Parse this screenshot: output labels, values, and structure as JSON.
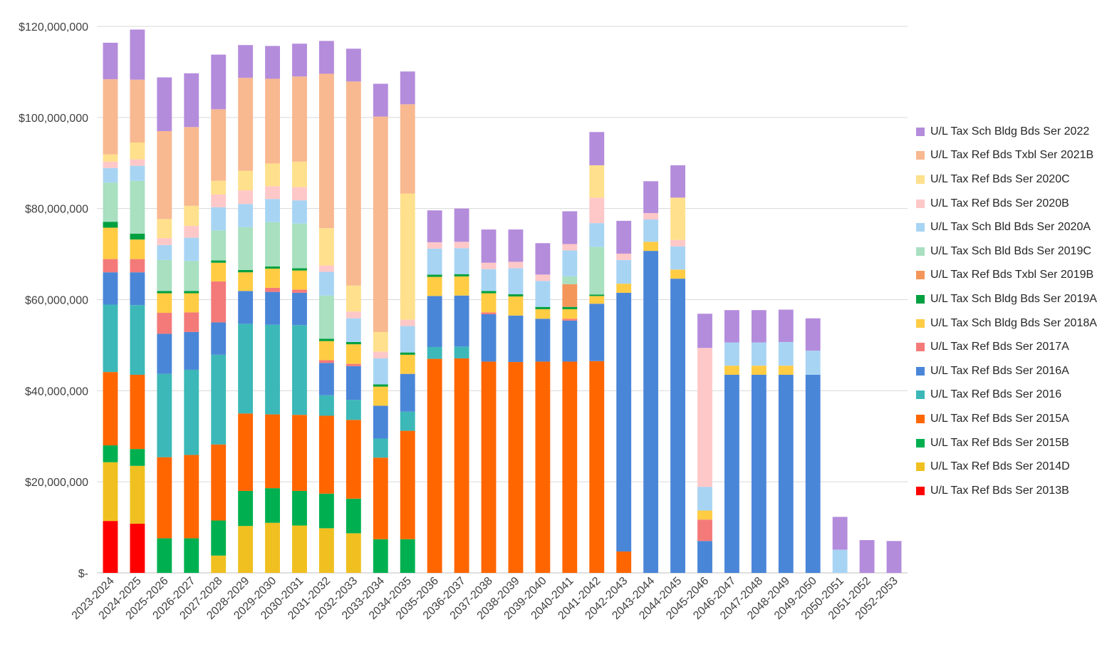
{
  "chart_data": {
    "type": "bar",
    "stacked": true,
    "ylim": [
      0,
      120000000
    ],
    "ytick_labels": [
      "$-",
      "$20,000,000",
      "$40,000,000",
      "$60,000,000",
      "$80,000,000",
      "$100,000,000",
      "$120,000,000"
    ],
    "grid": true,
    "legend_position": "right",
    "categories": [
      "2023-2024",
      "2024-2025",
      "2025-2026",
      "2026-2027",
      "2027-2028",
      "2028-2029",
      "2029-2030",
      "2030-2031",
      "2031-2032",
      "2032-2033",
      "2033-2034",
      "2034-2035",
      "2035-2036",
      "2036-2037",
      "2037-2038",
      "2038-2039",
      "2039-2040",
      "2040-2041",
      "2041-2042",
      "2042-2043",
      "2043-2044",
      "2044-2045",
      "2045-2046",
      "2046-2047",
      "2047-2048",
      "2048-2049",
      "2049-2050",
      "2050-2051",
      "2051-2052",
      "2052-2053"
    ],
    "series": [
      {
        "name": "U/L Tax Ref Bds Ser 2013B",
        "color": "#ff0000",
        "values": [
          11400000,
          10800000,
          0,
          0,
          0,
          0,
          0,
          0,
          0,
          0,
          0,
          0,
          0,
          0,
          0,
          0,
          0,
          0,
          0,
          0,
          0,
          0,
          0,
          0,
          0,
          0,
          0,
          0,
          0,
          0
        ]
      },
      {
        "name": "U/L Tax Ref Bds Ser 2014D",
        "color": "#f0c020",
        "values": [
          12900000,
          12700000,
          0,
          0,
          3800000,
          10300000,
          11000000,
          10400000,
          9800000,
          8700000,
          0,
          0,
          0,
          0,
          0,
          0,
          0,
          0,
          0,
          0,
          0,
          0,
          0,
          0,
          0,
          0,
          0,
          0,
          0,
          0
        ]
      },
      {
        "name": "U/L Tax Ref Bds Ser 2015B",
        "color": "#00b050",
        "values": [
          3700000,
          3700000,
          7600000,
          7600000,
          7700000,
          7700000,
          7600000,
          7600000,
          7600000,
          7600000,
          7400000,
          7400000,
          0,
          0,
          0,
          0,
          0,
          0,
          0,
          0,
          0,
          0,
          0,
          0,
          0,
          0,
          0,
          0,
          0,
          0
        ]
      },
      {
        "name": "U/L Tax Ref Bds Ser 2015A",
        "color": "#ff6600",
        "values": [
          16100000,
          16300000,
          17800000,
          18300000,
          16700000,
          17000000,
          16200000,
          16700000,
          17100000,
          17300000,
          17900000,
          23800000,
          47000000,
          47100000,
          46400000,
          46300000,
          46400000,
          46400000,
          46500000,
          4700000,
          0,
          0,
          0,
          0,
          0,
          0,
          0,
          0,
          0,
          0
        ]
      },
      {
        "name": "U/L Tax Ref Bds Ser 2016",
        "color": "#3cb8b8",
        "values": [
          14800000,
          15300000,
          18300000,
          18700000,
          19700000,
          19700000,
          19700000,
          19700000,
          4500000,
          4400000,
          4200000,
          4200000,
          2600000,
          2600000,
          0,
          0,
          0,
          0,
          0,
          0,
          0,
          0,
          0,
          0,
          0,
          0,
          0,
          0,
          0,
          0
        ]
      },
      {
        "name": "U/L Tax Ref Bds Ser 2016A",
        "color": "#4a86d8",
        "values": [
          7100000,
          7200000,
          8800000,
          8300000,
          7100000,
          7200000,
          7200000,
          7100000,
          7100000,
          7400000,
          7200000,
          8300000,
          11200000,
          11200000,
          10400000,
          10200000,
          9400000,
          9000000,
          12600000,
          56800000,
          70700000,
          64600000,
          7000000,
          43500000,
          43500000,
          43500000,
          43500000,
          0,
          0,
          0
        ]
      },
      {
        "name": "U/L Tax Ref Bds Ser 2017A",
        "color": "#f47a7a",
        "values": [
          2900000,
          2900000,
          4600000,
          4300000,
          9000000,
          0,
          900000,
          700000,
          600000,
          500000,
          0,
          0,
          0,
          0,
          400000,
          0,
          0,
          400000,
          0,
          0,
          0,
          0,
          4700000,
          0,
          0,
          0,
          0,
          0,
          0,
          0
        ]
      },
      {
        "name": "U/L Tax Sch Bldg Bds Ser 2018A",
        "color": "#ffcc44",
        "values": [
          6900000,
          4300000,
          4300000,
          4200000,
          4100000,
          4100000,
          4200000,
          4200000,
          4200000,
          4300000,
          4200000,
          4200000,
          4200000,
          4200000,
          4200000,
          4200000,
          2100000,
          2100000,
          1700000,
          2000000,
          2000000,
          2000000,
          2000000,
          2000000,
          2000000,
          2000000,
          0,
          0,
          0,
          0
        ]
      },
      {
        "name": "U/L Tax Sch Bldg Bds Ser 2019A",
        "color": "#00a040",
        "values": [
          1300000,
          1300000,
          500000,
          500000,
          500000,
          500000,
          500000,
          500000,
          500000,
          500000,
          500000,
          500000,
          500000,
          500000,
          500000,
          500000,
          500000,
          500000,
          300000,
          0,
          0,
          0,
          0,
          0,
          0,
          0,
          0,
          0,
          0,
          0
        ]
      },
      {
        "name": "U/L Tax Ref Bds Txbl Ser 2019B",
        "color": "#f4965a",
        "values": [
          0,
          0,
          0,
          0,
          0,
          0,
          0,
          0,
          0,
          0,
          0,
          0,
          0,
          0,
          0,
          0,
          0,
          5000000,
          0,
          0,
          0,
          0,
          0,
          0,
          0,
          0,
          0,
          0,
          0,
          0
        ]
      },
      {
        "name": "U/L Tax Sch Bld Bds Ser 2019C",
        "color": "#a8e0c0",
        "values": [
          8600000,
          11600000,
          6800000,
          6600000,
          6600000,
          9400000,
          9700000,
          9800000,
          9500000,
          0,
          0,
          0,
          0,
          0,
          0,
          0,
          0,
          1700000,
          10500000,
          0,
          0,
          0,
          0,
          0,
          0,
          0,
          0,
          0,
          0,
          0
        ]
      },
      {
        "name": "U/L Tax Sch Bld Bds Ser 2020A",
        "color": "#a8d4f4",
        "values": [
          3200000,
          3300000,
          3300000,
          5100000,
          5100000,
          5100000,
          5100000,
          5100000,
          5200000,
          5200000,
          5700000,
          5800000,
          5700000,
          5700000,
          4800000,
          5700000,
          5700000,
          5700000,
          5200000,
          5200000,
          4900000,
          5100000,
          5200000,
          5100000,
          5100000,
          5200000,
          5300000,
          5100000,
          0,
          0
        ]
      },
      {
        "name": "U/L Tax Ref Bds Ser 2020B",
        "color": "#ffc8c8",
        "values": [
          1400000,
          1400000,
          1500000,
          2600000,
          2800000,
          3000000,
          2800000,
          2900000,
          1400000,
          1500000,
          1500000,
          1400000,
          1400000,
          1400000,
          1400000,
          1400000,
          1400000,
          1400000,
          5600000,
          1400000,
          1400000,
          1400000,
          30500000,
          0,
          0,
          0,
          0,
          0,
          0,
          0
        ]
      },
      {
        "name": "U/L Tax Ref Bds Ser 2020C",
        "color": "#ffe08c",
        "values": [
          1600000,
          3700000,
          4200000,
          4400000,
          3000000,
          4300000,
          5000000,
          5600000,
          8200000,
          5700000,
          4300000,
          27700000,
          0,
          0,
          0,
          0,
          0,
          0,
          7100000,
          0,
          0,
          9300000,
          0,
          0,
          0,
          0,
          0,
          0,
          0,
          0
        ]
      },
      {
        "name": "U/L Tax Ref Bds Txbl Ser 2021B",
        "color": "#f8b890",
        "values": [
          16500000,
          13800000,
          19300000,
          17300000,
          15700000,
          20400000,
          18600000,
          18700000,
          33900000,
          44800000,
          47300000,
          19600000,
          0,
          0,
          0,
          0,
          0,
          0,
          0,
          0,
          0,
          0,
          0,
          0,
          0,
          0,
          0,
          0,
          0,
          0
        ]
      },
      {
        "name": "U/L Tax Sch Bldg Bds Ser 2022",
        "color": "#b48cdc",
        "values": [
          8000000,
          11000000,
          11800000,
          11800000,
          12000000,
          7200000,
          7200000,
          7200000,
          7200000,
          7200000,
          7200000,
          7200000,
          7000000,
          7300000,
          7300000,
          7100000,
          6900000,
          7200000,
          7300000,
          7200000,
          7000000,
          7100000,
          7500000,
          7100000,
          7100000,
          7100000,
          7100000,
          7200000,
          7200000,
          7000000
        ]
      }
    ]
  }
}
